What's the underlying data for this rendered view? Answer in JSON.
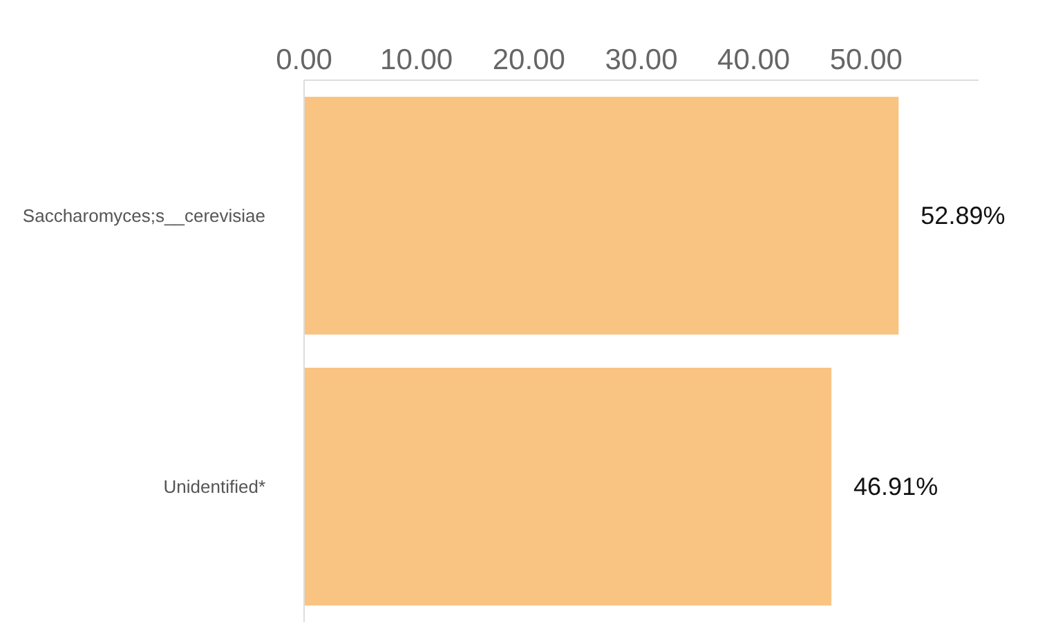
{
  "chart_data": {
    "type": "bar",
    "orientation": "horizontal",
    "categories": [
      "Saccharomyces;s__cerevisiae",
      "Unidentified*"
    ],
    "values": [
      52.89,
      46.91
    ],
    "color": "#f9c482",
    "value_labels": [
      "52.89%",
      "46.91%"
    ],
    "xlim": [
      0,
      60
    ],
    "xticks": [
      {
        "value": 0,
        "label": "0.00"
      },
      {
        "value": 10,
        "label": "10.00"
      },
      {
        "value": 20,
        "label": "20.00"
      },
      {
        "value": 30,
        "label": "30.00"
      },
      {
        "value": 40,
        "label": "40.00"
      },
      {
        "value": 50,
        "label": "50.00"
      }
    ],
    "grid": false,
    "legend": false
  }
}
